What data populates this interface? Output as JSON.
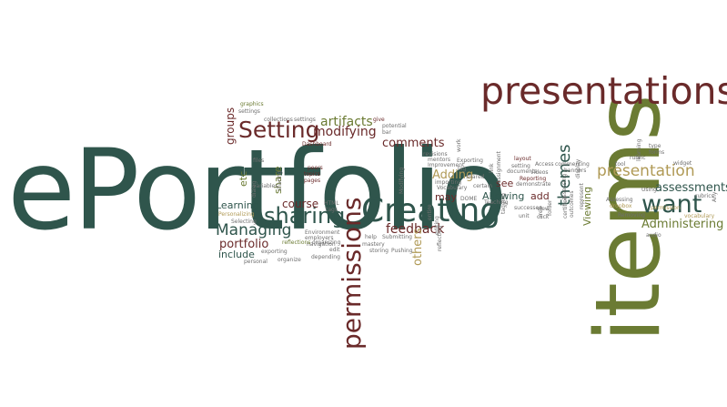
{
  "palette": {
    "dark_teal": "#2f554c",
    "olive": "#6b7b33",
    "maroon": "#6a2a2a",
    "tan": "#b09a56",
    "grey": "#6f6f6f"
  },
  "words": [
    {
      "t": "ePortfolio",
      "c": "dark_teal"
    },
    {
      "t": "items",
      "c": "olive"
    },
    {
      "t": "presentations",
      "c": "maroon"
    },
    {
      "t": "Creating",
      "c": "dark_teal"
    },
    {
      "t": "permissions",
      "c": "maroon"
    },
    {
      "t": "Setting",
      "c": "maroon"
    },
    {
      "t": "sharing",
      "c": "dark_teal"
    },
    {
      "t": "want",
      "c": "dark_teal"
    },
    {
      "t": "presentation",
      "c": "tan"
    },
    {
      "t": "themes",
      "c": "dark_teal"
    },
    {
      "t": "Managing",
      "c": "dark_teal"
    },
    {
      "t": "portfolio",
      "c": "maroon"
    },
    {
      "t": "assessments",
      "c": "dark_teal"
    },
    {
      "t": "Administering",
      "c": "olive"
    },
    {
      "t": "feedback",
      "c": "maroon"
    },
    {
      "t": "modifying",
      "c": "maroon"
    },
    {
      "t": "artifacts",
      "c": "olive"
    },
    {
      "t": "comments",
      "c": "maroon"
    },
    {
      "t": "Adding",
      "c": "tan"
    },
    {
      "t": "others",
      "c": "tan"
    },
    {
      "t": "course",
      "c": "maroon"
    },
    {
      "t": "groups",
      "c": "maroon"
    },
    {
      "t": "Learning",
      "c": "dark_teal"
    },
    {
      "t": "include",
      "c": "dark_teal"
    },
    {
      "t": "Allowing",
      "c": "dark_teal"
    },
    {
      "t": "Viewing",
      "c": "olive"
    },
    {
      "t": "add",
      "c": "maroon"
    },
    {
      "t": "see",
      "c": "maroon"
    },
    {
      "t": "may",
      "c": "maroon"
    },
    {
      "t": "share",
      "c": "olive"
    },
    {
      "t": "etc",
      "c": "olive"
    },
    {
      "t": "graphics",
      "c": "olive"
    },
    {
      "t": "settings",
      "c": "grey"
    },
    {
      "t": "collections",
      "c": "grey"
    },
    {
      "t": "settings",
      "c": "grey"
    },
    {
      "t": "give",
      "c": "maroon"
    },
    {
      "t": "potential",
      "c": "grey"
    },
    {
      "t": "bar",
      "c": "grey"
    },
    {
      "t": "Dashboard",
      "c": "maroon"
    },
    {
      "t": "files",
      "c": "grey"
    },
    {
      "t": "variables",
      "c": "grey"
    },
    {
      "t": "peers",
      "c": "maroon"
    },
    {
      "t": "topics",
      "c": "maroon"
    },
    {
      "t": "pages",
      "c": "maroon"
    },
    {
      "t": "HTML",
      "c": "grey"
    },
    {
      "t": "tags",
      "c": "grey"
    },
    {
      "t": "Personalizing",
      "c": "tan"
    },
    {
      "t": "Selecting",
      "c": "grey"
    },
    {
      "t": "Environment",
      "c": "grey"
    },
    {
      "t": "employers",
      "c": "grey"
    },
    {
      "t": "navigation",
      "c": "grey"
    },
    {
      "t": "reflections",
      "c": "olive"
    },
    {
      "t": "organizing",
      "c": "grey"
    },
    {
      "t": "exporting",
      "c": "grey"
    },
    {
      "t": "edit",
      "c": "grey"
    },
    {
      "t": "personal",
      "c": "grey"
    },
    {
      "t": "organize",
      "c": "grey"
    },
    {
      "t": "depending",
      "c": "grey"
    },
    {
      "t": "storing",
      "c": "grey"
    },
    {
      "t": "Pushing",
      "c": "grey"
    },
    {
      "t": "mastery",
      "c": "grey"
    },
    {
      "t": "revisions",
      "c": "grey"
    },
    {
      "t": "mentors",
      "c": "grey"
    },
    {
      "t": "Improvement",
      "c": "grey"
    },
    {
      "t": "Vocabulary",
      "c": "grey"
    },
    {
      "t": "importing",
      "c": "grey"
    },
    {
      "t": "shared",
      "c": "grey"
    },
    {
      "t": "Exporting",
      "c": "grey"
    },
    {
      "t": "Tag",
      "c": "grey"
    },
    {
      "t": "help",
      "c": "grey"
    },
    {
      "t": "Submitting",
      "c": "grey"
    },
    {
      "t": "DOME",
      "c": "grey"
    },
    {
      "t": "Teaching",
      "c": "grey"
    },
    {
      "t": "layout",
      "c": "maroon"
    },
    {
      "t": "setting",
      "c": "grey"
    },
    {
      "t": "documents",
      "c": "grey"
    },
    {
      "t": "Access",
      "c": "grey"
    },
    {
      "t": "commenting",
      "c": "grey"
    },
    {
      "t": "banners",
      "c": "grey"
    },
    {
      "t": "Reporting",
      "c": "maroon"
    },
    {
      "t": "demonstrate",
      "c": "grey"
    },
    {
      "t": "videos",
      "c": "grey"
    },
    {
      "t": "certain",
      "c": "grey"
    },
    {
      "t": "successes",
      "c": "grey"
    },
    {
      "t": "view",
      "c": "grey"
    },
    {
      "t": "unit",
      "c": "grey"
    },
    {
      "t": "click",
      "c": "grey"
    },
    {
      "t": "tool",
      "c": "grey"
    },
    {
      "t": "rubric",
      "c": "grey"
    },
    {
      "t": "forms",
      "c": "grey"
    },
    {
      "t": "type",
      "c": "grey"
    },
    {
      "t": "widget",
      "c": "grey"
    },
    {
      "t": "Using",
      "c": "grey"
    },
    {
      "t": "rubrics",
      "c": "grey"
    },
    {
      "t": "permission",
      "c": "tan"
    },
    {
      "t": "Assessing",
      "c": "grey"
    },
    {
      "t": "dropbox",
      "c": "tan"
    },
    {
      "t": "Removing",
      "c": "grey"
    },
    {
      "t": "audio",
      "c": "grey"
    },
    {
      "t": "vocabulary",
      "c": "tan"
    },
    {
      "t": "learning",
      "c": "grey"
    },
    {
      "t": "work",
      "c": "grey"
    },
    {
      "t": "link",
      "c": "grey"
    },
    {
      "t": "assignment",
      "c": "grey"
    },
    {
      "t": "reflecting",
      "c": "grey"
    },
    {
      "t": "sharing",
      "c": "grey"
    },
    {
      "t": "dialog",
      "c": "grey"
    },
    {
      "t": "Modifying",
      "c": "grey"
    },
    {
      "t": "tagging",
      "c": "grey"
    },
    {
      "t": "folder",
      "c": "grey"
    },
    {
      "t": "outcomes",
      "c": "grey"
    },
    {
      "t": "represent",
      "c": "grey"
    },
    {
      "t": "assessing",
      "c": "grey"
    },
    {
      "t": "certified",
      "c": "grey"
    },
    {
      "t": "Any",
      "c": "grey"
    },
    {
      "t": "display",
      "c": "grey"
    },
    {
      "t": "entire",
      "c": "grey"
    },
    {
      "t": "editing",
      "c": "grey"
    },
    {
      "t": "area",
      "c": "grey"
    }
  ]
}
